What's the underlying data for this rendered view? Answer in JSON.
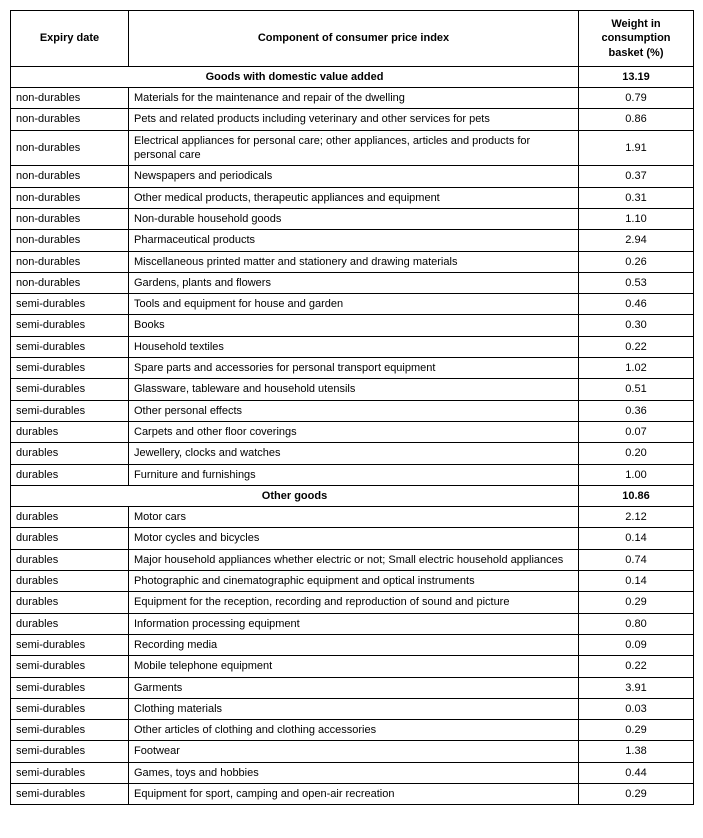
{
  "headers": {
    "expiry": "Expiry date",
    "component": "Component of consumer price index",
    "weight": "Weight in consumption basket (%)"
  },
  "sections": [
    {
      "title": "Goods with domestic value added",
      "weight": "13.19",
      "rows": [
        {
          "expiry": "non-durables",
          "component": "Materials for the maintenance and repair of the dwelling",
          "weight": "0.79"
        },
        {
          "expiry": "non-durables",
          "component": "Pets and related products including veterinary and other services for pets",
          "weight": "0.86"
        },
        {
          "expiry": "non-durables",
          "component": "Electrical appliances for personal care; other appliances, articles and products for personal care",
          "weight": "1.91"
        },
        {
          "expiry": "non-durables",
          "component": "Newspapers and periodicals",
          "weight": "0.37"
        },
        {
          "expiry": "non-durables",
          "component": "Other medical products, therapeutic appliances and equipment",
          "weight": "0.31"
        },
        {
          "expiry": "non-durables",
          "component": "Non-durable household goods",
          "weight": "1.10"
        },
        {
          "expiry": "non-durables",
          "component": "Pharmaceutical products",
          "weight": "2.94"
        },
        {
          "expiry": "non-durables",
          "component": "Miscellaneous printed matter and stationery and drawing materials",
          "weight": "0.26"
        },
        {
          "expiry": "non-durables",
          "component": "Gardens, plants and flowers",
          "weight": "0.53"
        },
        {
          "expiry": "semi-durables",
          "component": "Tools and equipment for house and garden",
          "weight": "0.46"
        },
        {
          "expiry": "semi-durables",
          "component": "Books",
          "weight": "0.30"
        },
        {
          "expiry": "semi-durables",
          "component": "Household textiles",
          "weight": "0.22"
        },
        {
          "expiry": "semi-durables",
          "component": "Spare parts and accessories for personal transport equipment",
          "weight": "1.02"
        },
        {
          "expiry": "semi-durables",
          "component": "Glassware, tableware and household utensils",
          "weight": "0.51"
        },
        {
          "expiry": "semi-durables",
          "component": "Other personal effects",
          "weight": "0.36"
        },
        {
          "expiry": "durables",
          "component": "Carpets and other floor coverings",
          "weight": "0.07"
        },
        {
          "expiry": "durables",
          "component": "Jewellery, clocks and watches",
          "weight": "0.20"
        },
        {
          "expiry": "durables",
          "component": "Furniture and furnishings",
          "weight": "1.00"
        }
      ]
    },
    {
      "title": "Other goods",
      "weight": "10.86",
      "rows": [
        {
          "expiry": "durables",
          "component": "Motor cars",
          "weight": "2.12"
        },
        {
          "expiry": "durables",
          "component": "Motor cycles and bicycles",
          "weight": "0.14"
        },
        {
          "expiry": "durables",
          "component": "Major household appliances whether electric or not; Small electric household appliances",
          "weight": "0.74"
        },
        {
          "expiry": "durables",
          "component": "Photographic and cinematographic equipment and optical instruments",
          "weight": "0.14"
        },
        {
          "expiry": "durables",
          "component": "Equipment for the reception, recording and reproduction of sound and picture",
          "weight": "0.29"
        },
        {
          "expiry": "durables",
          "component": "Information processing equipment",
          "weight": "0.80"
        },
        {
          "expiry": "semi-durables",
          "component": "Recording media",
          "weight": "0.09"
        },
        {
          "expiry": "semi-durables",
          "component": "Mobile telephone equipment",
          "weight": "0.22"
        },
        {
          "expiry": "semi-durables",
          "component": "Garments",
          "weight": "3.91"
        },
        {
          "expiry": "semi-durables",
          "component": "Clothing materials",
          "weight": "0.03"
        },
        {
          "expiry": "semi-durables",
          "component": "Other articles of clothing and clothing accessories",
          "weight": "0.29"
        },
        {
          "expiry": "semi-durables",
          "component": "Footwear",
          "weight": "1.38"
        },
        {
          "expiry": "semi-durables",
          "component": "Games, toys and hobbies",
          "weight": "0.44"
        },
        {
          "expiry": "semi-durables",
          "component": "Equipment for sport, camping and open-air recreation",
          "weight": "0.29"
        }
      ]
    }
  ]
}
